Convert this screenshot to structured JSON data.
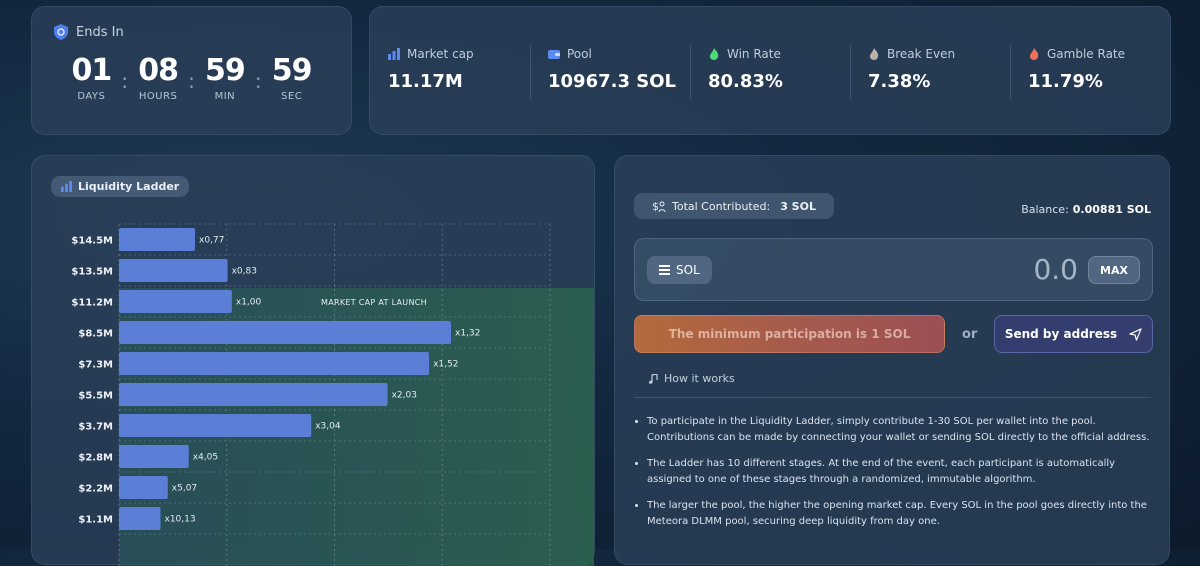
{
  "countdown": {
    "title": "Ends In",
    "units": [
      {
        "value": "01",
        "label": "DAYS"
      },
      {
        "value": "08",
        "label": "HOURS"
      },
      {
        "value": "59",
        "label": "MIN"
      },
      {
        "value": "59",
        "label": "SEC"
      }
    ]
  },
  "stats": [
    {
      "label": "Market cap",
      "value": "11.17M",
      "icon": "chart-bars-icon"
    },
    {
      "label": "Pool",
      "value": "10967.3 SOL",
      "icon": "wallet-icon"
    },
    {
      "label": "Win Rate",
      "value": "80.83%",
      "icon": "flame-green-icon"
    },
    {
      "label": "Break Even",
      "value": "7.38%",
      "icon": "flame-gray-icon"
    },
    {
      "label": "Gamble Rate",
      "value": "11.79%",
      "icon": "flame-red-icon"
    }
  ],
  "ladder": {
    "label": "Liquidity Ladder",
    "launch_label": "MARKET CAP AT LAUNCH",
    "launch_level": "$11.2M"
  },
  "chart_data": {
    "type": "bar",
    "orientation": "horizontal",
    "categories": [
      "$14.5M",
      "$13.5M",
      "$11.2M",
      "$8.5M",
      "$7.3M",
      "$5.5M",
      "$3.7M",
      "$2.8M",
      "$2.2M",
      "$1.1M"
    ],
    "values": [
      0.77,
      0.83,
      1.0,
      1.32,
      1.52,
      2.03,
      3.04,
      4.05,
      5.07,
      10.13
    ],
    "value_labels": [
      "x0,77",
      "x0,83",
      "x1,00",
      "x1,32",
      "x1,52",
      "x2,03",
      "x3,04",
      "x4,05",
      "x5,07",
      "x10,13"
    ],
    "bar_widths_relative": [
      0.229,
      0.327,
      0.34,
      1.0,
      0.934,
      0.809,
      0.579,
      0.21,
      0.147,
      0.125
    ],
    "grid": true,
    "bar_color": "#5b7fd6",
    "highlight_color": "#2c6a5a"
  },
  "contribute": {
    "total_label": "Total Contributed:",
    "total_value": "3 SOL",
    "balance_label": "Balance:",
    "balance_value": "0.00881 SOL",
    "token": "SOL",
    "amount": "0.0",
    "max_label": "MAX",
    "min_button": "The minimum participation is 1 SOL",
    "or_label": "or",
    "send_button": "Send by address",
    "how_label": "How it works",
    "info": [
      "To participate in the Liquidity Ladder, simply contribute 1-30 SOL per wallet into the pool. Contributions can be made by connecting your wallet or sending SOL directly to the official address.",
      "The Ladder has 10 different stages. At the end of the event, each participant is automatically assigned to one of these stages through a randomized, immutable algorithm.",
      "The larger the pool, the higher the opening market cap. Every SOL in the pool goes directly into the Meteora DLMM pool, securing deep liquidity from day one."
    ]
  },
  "colors": {
    "accent": "#5b7fd6",
    "min_button": "#b46a3c",
    "send_button": "#383f76"
  }
}
